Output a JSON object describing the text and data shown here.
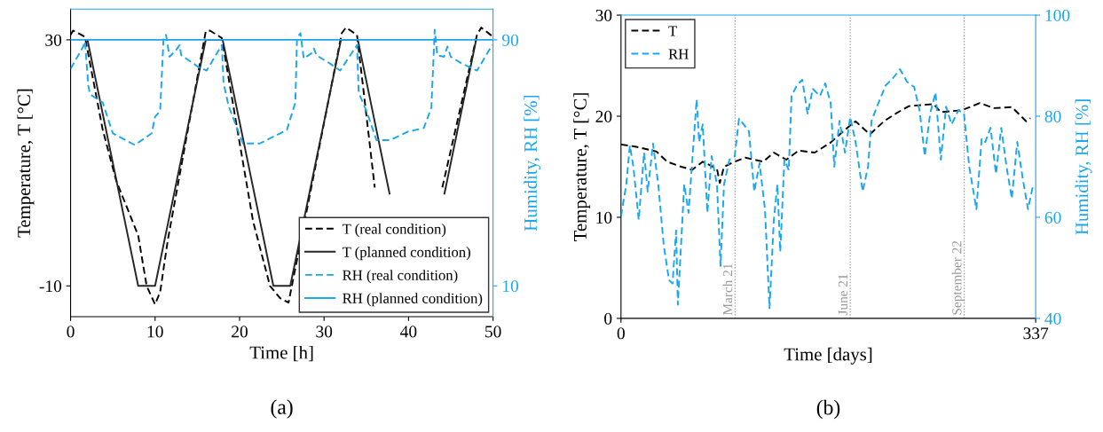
{
  "chart_data": [
    {
      "type": "line",
      "xlabel": "Time [h]",
      "ylabel": "Temperature, T [°C]",
      "y2label": "Humidity, RH [%]",
      "xlim": [
        0,
        50
      ],
      "xticks": [
        0,
        10,
        20,
        30,
        40,
        50
      ],
      "ylim": [
        -15,
        35
      ],
      "yticks": [
        {
          "value": -10,
          "label": "-10"
        },
        30
      ],
      "y2lim": [
        0,
        100
      ],
      "y2ticks": [
        10,
        90
      ],
      "legend": "bottom right",
      "grid": false,
      "annotations": [
        "(a)"
      ],
      "series": [
        {
          "name": "T (real condition)",
          "color": "#000000",
          "line_style": "dashed",
          "axis": "y",
          "x": [
            0,
            0.3,
            1.7,
            3.8,
            5.4,
            8,
            9,
            10,
            10.6,
            11.5,
            16,
            16.5,
            17.9,
            19.6,
            21.6,
            23.6,
            24.8,
            25.8,
            32.1,
            32.6,
            33.9,
            35.3,
            36.0,
            40,
            44.0,
            48.1,
            48.6,
            49.9
          ],
          "values": [
            30.8,
            31.5,
            30.5,
            15.4,
            7.1,
            -1.8,
            -10,
            -13,
            -11,
            -2.6,
            31.4,
            31.5,
            30.3,
            16.5,
            0.5,
            -10,
            -12,
            -12.7,
            31.1,
            32,
            30.8,
            14.3,
            6,
            null,
            6,
            30.8,
            32,
            30.6
          ]
        },
        {
          "name": "T (planned condition)",
          "color": "#262626",
          "line_style": "solid",
          "axis": "y",
          "x": [
            2,
            8,
            10,
            16,
            18,
            24,
            26,
            32,
            34,
            37.75,
            40,
            44.25,
            48
          ],
          "values": [
            30,
            -10,
            -10,
            30,
            30,
            -10,
            -10,
            30,
            30,
            5,
            null,
            5,
            30
          ]
        },
        {
          "name": "RH (real condition)",
          "color": "#1aa7ee",
          "line_style": "dashed",
          "axis": "y2",
          "x": [
            0,
            1.5,
            1.7,
            2.1,
            2.3,
            3.8,
            5,
            7.6,
            9.6,
            10,
            10.6,
            11,
            11.3,
            11.7,
            12.5,
            12.9,
            13.1,
            15.1,
            16.1,
            17.9,
            18.1,
            18.7,
            20.4,
            22.4,
            25.6,
            26.6,
            26.8,
            27.2,
            27.6,
            28.5,
            28.8,
            29.1,
            30.7,
            31.9,
            33.9,
            34.1,
            35.1,
            36.2,
            37.8,
            40,
            41.8,
            42.7,
            43.1,
            43.4,
            44.2,
            44.6,
            45,
            46.3,
            48.1,
            49.9
          ],
          "values": [
            80.6,
            87.8,
            89.5,
            75,
            72.3,
            69.6,
            59.6,
            55.8,
            59.6,
            65,
            66.8,
            90.5,
            91.6,
            84.5,
            86.7,
            88.3,
            85,
            81.2,
            80,
            88.3,
            76,
            68.5,
            56.3,
            56.3,
            60.7,
            69.6,
            90.5,
            92.2,
            83.9,
            85.6,
            87.2,
            85,
            82.3,
            80,
            88.3,
            72.8,
            66.3,
            57.4,
            57.4,
            60.2,
            61.3,
            67.9,
            93.3,
            85,
            84.5,
            87.8,
            84.5,
            82.3,
            80,
            88.3
          ]
        },
        {
          "name": "RH (planned condition)",
          "color": "#1aa7ee",
          "line_style": "solid",
          "axis": "y2",
          "x": [
            0,
            50
          ],
          "values": [
            90,
            90
          ]
        }
      ]
    },
    {
      "type": "line",
      "xlabel": "Time [days]",
      "ylabel": "Temperature, T [°C]",
      "y2label": "Humidity, RH [%]",
      "xlim": [
        0,
        337
      ],
      "xticks": [
        0,
        337
      ],
      "ylim": [
        0,
        30
      ],
      "yticks": [
        0,
        10,
        20,
        30
      ],
      "y2lim": [
        40,
        100
      ],
      "y2ticks": [
        40,
        60,
        80,
        100
      ],
      "legend": "top left",
      "grid": false,
      "annotations": [
        "(b)"
      ],
      "ref_lines": [
        {
          "axis": "x",
          "value": 92.7,
          "label": "March 21",
          "color": "#999999",
          "line_style": "dotted"
        },
        {
          "axis": "x",
          "value": 186.3,
          "label": "June 21",
          "color": "#999999",
          "line_style": "dotted"
        },
        {
          "axis": "x",
          "value": 278.9,
          "label": "September 22",
          "color": "#999999",
          "line_style": "dotted"
        }
      ],
      "series": [
        {
          "name": "T",
          "color": "#000000",
          "line_style": "dashed",
          "axis": "y",
          "x": [
            0,
            11.5,
            28.9,
            37.5,
            49,
            57.8,
            66.4,
            78,
            80.3,
            83.7,
            92.4,
            101,
            115.5,
            124.2,
            134.3,
            144.4,
            157.4,
            170.4,
            183.4,
            190.6,
            202.2,
            213.7,
            223.8,
            234,
            254,
            259.9,
            277.2,
            291.6,
            303.2,
            317.6,
            329.2,
            332.7
          ],
          "values": [
            17.2,
            17.0,
            16.5,
            15.5,
            15.0,
            14.7,
            15.5,
            14.8,
            13.4,
            15,
            15.5,
            15.9,
            15.5,
            16.4,
            15.7,
            16.6,
            16.4,
            17.4,
            18.8,
            19.5,
            18.2,
            19.5,
            20.3,
            21.0,
            21.2,
            20.4,
            20.6,
            21.3,
            20.8,
            20.9,
            19.5,
            19.8
          ]
        },
        {
          "name": "RH",
          "color": "#1aa7ee",
          "line_style": "dashed",
          "axis": "y2",
          "x": [
            0,
            4.3,
            7.2,
            10.1,
            14.4,
            18.8,
            21.7,
            26,
            30.3,
            34.7,
            39,
            41.9,
            44.8,
            46.2,
            51.4,
            54.9,
            59.2,
            61.5,
            63.5,
            66.4,
            70.2,
            73.6,
            78,
            80.9,
            83.7,
            88.1,
            92.4,
            95.9,
            99.6,
            104,
            108.3,
            112.6,
            117,
            120.7,
            124.2,
            127.1,
            129.4,
            132.8,
            136.3,
            138.6,
            142.9,
            147.3,
            151.6,
            155.9,
            161.7,
            166,
            170.4,
            173.3,
            177.6,
            182,
            186.3,
            190.6,
            196.4,
            200.7,
            203.6,
            208,
            215.1,
            220.9,
            226.7,
            232.5,
            238.2,
            242.6,
            246.9,
            251.2,
            255.6,
            259.9,
            264.2,
            268.6,
            274.3,
            278.7,
            283,
            288.8,
            293.1,
            296,
            300.3,
            304.7,
            309,
            313.3,
            317.6,
            322,
            326.3,
            330.7,
            335
          ],
          "values": [
            60.2,
            66.5,
            74.2,
            70,
            59.5,
            72.8,
            65.1,
            74.6,
            66.5,
            54.6,
            47.6,
            46.9,
            57.4,
            42.7,
            66.5,
            60.9,
            75.6,
            83.3,
            74.9,
            78.4,
            60.9,
            72.1,
            66.5,
            50.4,
            66.5,
            71.4,
            72.1,
            79.5,
            78.4,
            77,
            65.1,
            70.7,
            61.6,
            42,
            59.5,
            66.5,
            53.2,
            71.4,
            69.3,
            84,
            86.1,
            87.2,
            80.5,
            85.4,
            84,
            86.5,
            82.6,
            70,
            79.1,
            72.8,
            79.8,
            74.9,
            65.1,
            70,
            79.1,
            81.9,
            86.1,
            87.5,
            89.3,
            86.8,
            85.8,
            81.2,
            72.1,
            80.5,
            84.7,
            71.4,
            81.9,
            78.4,
            81.2,
            80.5,
            70,
            61.6,
            75.6,
            74.9,
            77.7,
            68.6,
            77.7,
            70,
            63.7,
            74.9,
            67.9,
            61.6,
            66.5
          ]
        }
      ]
    }
  ]
}
